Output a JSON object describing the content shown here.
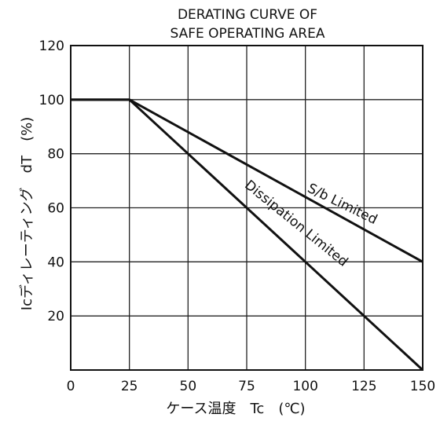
{
  "chart_data": {
    "type": "line",
    "title_lines": [
      "DERATING CURVE OF",
      "SAFE OPERATING AREA"
    ],
    "xlabel": "ケース温度　Tc　(℃)",
    "ylabel": "Icディレーティング　dT　(%)",
    "x_ticks": [
      0,
      25,
      50,
      75,
      100,
      125,
      150
    ],
    "y_ticks": [
      20,
      40,
      60,
      80,
      100,
      120
    ],
    "xlim": [
      0,
      150
    ],
    "ylim": [
      0,
      120
    ],
    "grid": true,
    "series": [
      {
        "name": "S/b Limited",
        "x": [
          0,
          25,
          150
        ],
        "y": [
          100,
          100,
          40
        ]
      },
      {
        "name": "Dissipation Limited",
        "x": [
          0,
          25,
          150
        ],
        "y": [
          100,
          100,
          0
        ]
      }
    ],
    "annotations": [
      {
        "text": "S/b Limited",
        "x": 115,
        "y": 60,
        "angle": 26
      },
      {
        "text": "Dissipation Limited",
        "x": 95,
        "y": 53,
        "angle": 39
      }
    ]
  }
}
